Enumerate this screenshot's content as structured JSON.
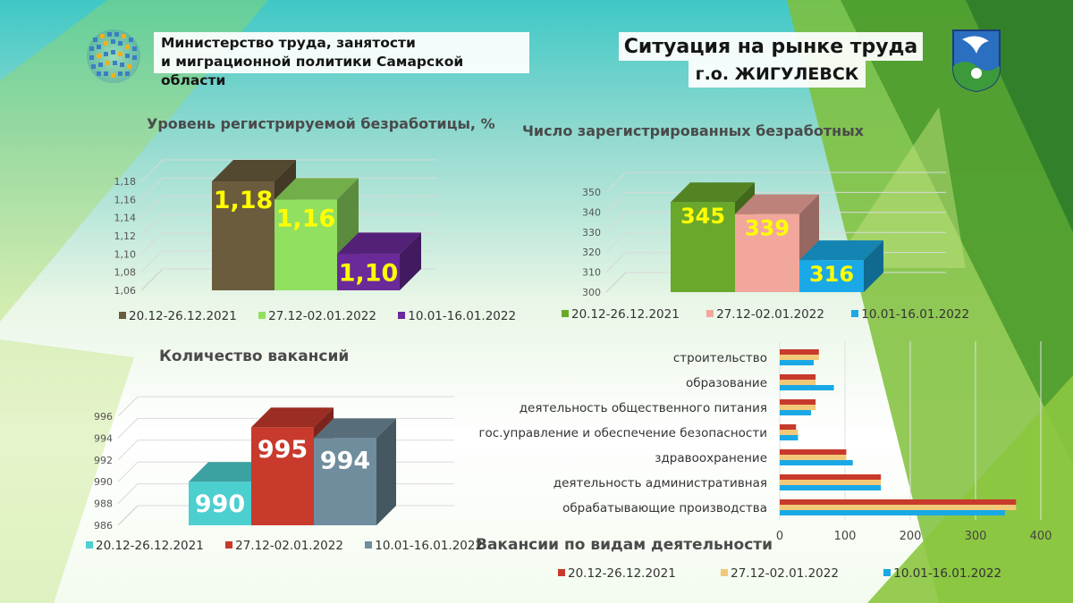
{
  "header": {
    "ministry_line1": "Министерство труда, занятости",
    "ministry_line2": "и миграционной политики Самарской области",
    "situation_title": "Ситуация на рынке труда",
    "situation_subtitle": "г.о. ЖИГУЛЕВСК"
  },
  "icons": {
    "ministry_logo": "ministry-logo-icon",
    "city_emblem": "zhigulevsk-emblem-icon"
  },
  "colors": {
    "period1_dark": "#6b5c3d",
    "period2_lightgreen": "#92e060",
    "period3_purple": "#6a2a9a",
    "green": "#6aa82c",
    "salmon": "#f2a79c",
    "blue": "#1aa9e6",
    "cyan": "#4ccfcf",
    "red": "#c83a2c",
    "gray": "#6f8d9d",
    "bar_label_yellow": "#ffff00",
    "bar_label_white": "#ffffff"
  },
  "chart_data": [
    {
      "id": "unemployment_rate",
      "type": "bar",
      "title": "Уровень регистрируемой  безработицы, %",
      "categories": [
        "20.12-26.12.2021",
        "27.12-02.01.2022",
        "10.01-16.01.2022"
      ],
      "values": [
        1.18,
        1.16,
        1.1
      ],
      "value_labels": [
        "1,18",
        "1,16",
        "1,10"
      ],
      "ylim": [
        1.06,
        1.18
      ],
      "yticks": [
        "1,06",
        "1,08",
        "1,10",
        "1,12",
        "1,14",
        "1,16",
        "1,18"
      ],
      "colors": [
        "#6b5c3d",
        "#92e060",
        "#6a2a9a"
      ]
    },
    {
      "id": "registered_unemployed",
      "type": "bar",
      "title": "Число зарегистрированных безработных",
      "categories": [
        "20.12-26.12.2021",
        "27.12-02.01.2022",
        "10.01-16.01.2022"
      ],
      "values": [
        345,
        339,
        316
      ],
      "value_labels": [
        "345",
        "339",
        "316"
      ],
      "ylim": [
        300,
        350
      ],
      "yticks": [
        "300",
        "310",
        "320",
        "330",
        "340",
        "350"
      ],
      "colors": [
        "#6aa82c",
        "#f2a79c",
        "#1aa9e6"
      ]
    },
    {
      "id": "vacancies",
      "type": "bar",
      "title": "Количество вакансий",
      "categories": [
        "20.12-26.12.2021",
        "27.12-02.01.2022",
        "10.01-16.01.2022"
      ],
      "values": [
        990,
        995,
        994
      ],
      "value_labels": [
        "990",
        "995",
        "994"
      ],
      "ylim": [
        986,
        996
      ],
      "yticks": [
        "986",
        "988",
        "990",
        "992",
        "994",
        "996"
      ],
      "colors": [
        "#4ccfcf",
        "#c83a2c",
        "#6f8d9d"
      ]
    },
    {
      "id": "vacancies_by_activity",
      "type": "bar",
      "orientation": "horizontal",
      "title": "Вакансии по видам деятельности",
      "categories": [
        "строительство",
        "образование",
        "деятельность общественного питания",
        "гос.управление и обеспечение безопасности",
        "здравоохранение",
        "деятельность административная",
        "обрабатывающие производства"
      ],
      "series": [
        {
          "name": "20.12-26.12.2021",
          "color": "#c83a2c",
          "values": [
            60,
            55,
            55,
            25,
            102,
            155,
            362
          ]
        },
        {
          "name": "27.12-02.01.2022",
          "color": "#f2c979",
          "values": [
            60,
            55,
            55,
            28,
            102,
            155,
            362
          ]
        },
        {
          "name": "10.01-16.01.2022",
          "color": "#1aa9e6",
          "values": [
            52,
            83,
            48,
            28,
            112,
            155,
            345
          ]
        }
      ],
      "xlim": [
        0,
        400
      ],
      "xticks": [
        "0",
        "100",
        "200",
        "300",
        "400"
      ]
    }
  ]
}
